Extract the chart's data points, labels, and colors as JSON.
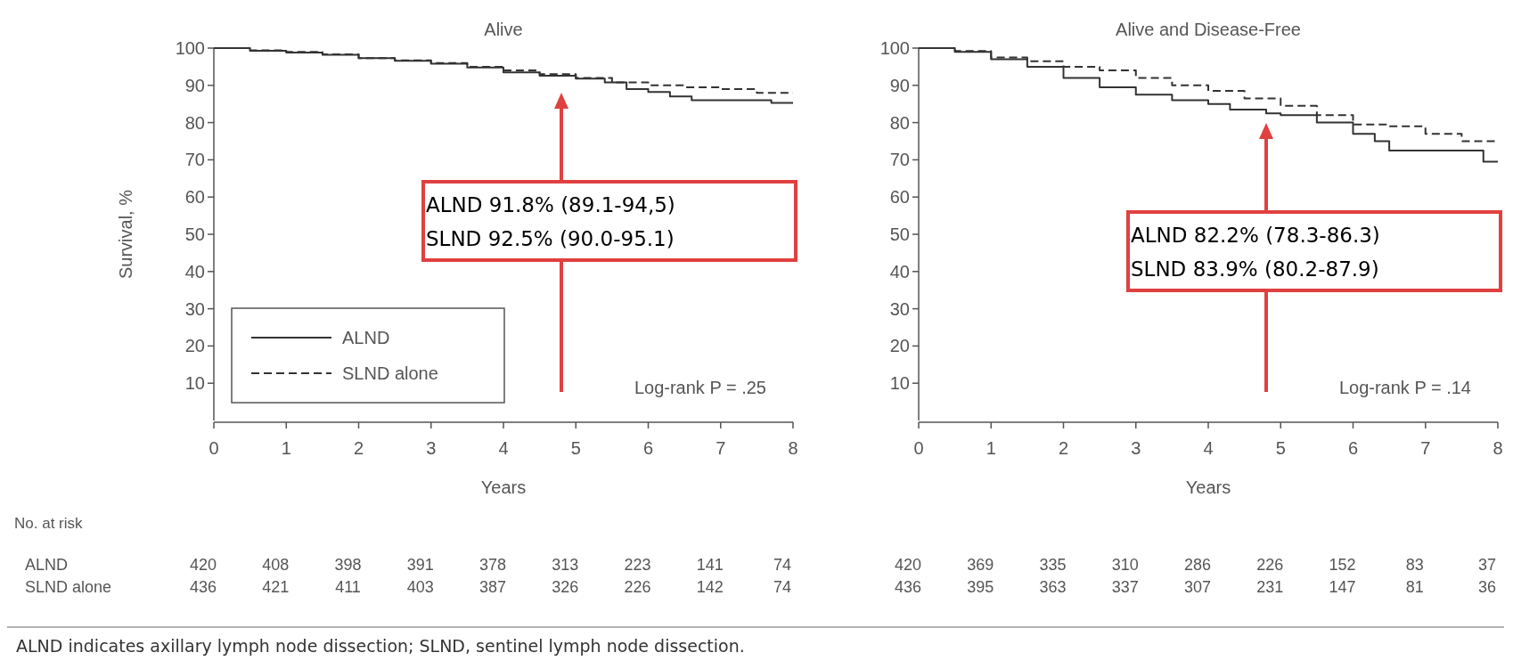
{
  "chart_data": [
    {
      "type": "step",
      "title": "Alive",
      "xlabel": "Years",
      "ylabel": "Survival, %",
      "xlim": [
        0,
        8
      ],
      "xticks": [
        0,
        1,
        2,
        3,
        4,
        5,
        6,
        7,
        8
      ],
      "ylim": [
        0,
        100
      ],
      "yticks": [
        10,
        20,
        30,
        40,
        50,
        60,
        70,
        80,
        90,
        100
      ],
      "legend": "bottom left",
      "grid": false,
      "marker": "none",
      "series": [
        {
          "name": "ALND",
          "color": "#333333",
          "line_style": "solid",
          "x": [
            0,
            0.5,
            1,
            1.5,
            2,
            2.5,
            3,
            3.5,
            4,
            4.5,
            5,
            5.4,
            5.7,
            6,
            6.3,
            6.6,
            7,
            7.5,
            7.7,
            8
          ],
          "values": [
            100,
            99.3,
            98.8,
            98.2,
            97.3,
            96.6,
            95.8,
            94.8,
            93.5,
            92.6,
            91.8,
            90.8,
            89,
            88.2,
            87,
            86,
            86,
            86,
            85.3,
            85.3
          ]
        },
        {
          "name": "SLND alone",
          "color": "#333333",
          "line_style": "dashed",
          "x": [
            0,
            0.5,
            1,
            1.5,
            2,
            2.5,
            3,
            3.5,
            4,
            4.5,
            5,
            5.5,
            6,
            6.5,
            7,
            7.5,
            8
          ],
          "values": [
            100,
            99.4,
            99,
            98.3,
            97.3,
            96.7,
            96,
            95,
            94,
            93,
            92,
            90.8,
            90,
            89.5,
            89,
            88,
            88
          ]
        }
      ],
      "annotations": [
        "ALND 91.8% (89.1-94,5)",
        "SLND 92.5% (90.0-95.1)",
        "Log-rank P = .25",
        "No. at risk",
        "ALND",
        "SLND alone",
        "420",
        "408",
        "398",
        "391",
        "378",
        "313",
        "223",
        "141",
        "74",
        "436",
        "421",
        "411",
        "403",
        "387",
        "326",
        "226",
        "142",
        "74"
      ]
    },
    {
      "type": "step",
      "title": "Alive and Disease-Free",
      "xlabel": "Years",
      "xlim": [
        0,
        8
      ],
      "xticks": [
        0,
        1,
        2,
        3,
        4,
        5,
        6,
        7,
        8
      ],
      "ylim": [
        0,
        100
      ],
      "yticks": [
        10,
        20,
        30,
        40,
        50,
        60,
        70,
        80,
        90,
        100
      ],
      "grid": false,
      "marker": "none",
      "series": [
        {
          "color": "#333333",
          "line_style": "solid",
          "x": [
            0,
            0.5,
            1,
            1.5,
            2,
            2.5,
            3,
            3.5,
            4,
            4.3,
            4.8,
            5,
            5.5,
            6,
            6.3,
            6.5,
            7,
            7.5,
            7.8,
            8
          ],
          "values": [
            100,
            99,
            97,
            95,
            92,
            89.5,
            87.5,
            86,
            85,
            83.5,
            82.5,
            82,
            80,
            77,
            75,
            72.5,
            72.5,
            72.5,
            69.5,
            69.5
          ]
        },
        {
          "color": "#333333",
          "line_style": "dashed",
          "x": [
            0,
            0.5,
            1,
            1.5,
            2,
            2.5,
            3,
            3.5,
            4,
            4.5,
            5,
            5.5,
            6,
            6.5,
            7,
            7.5,
            8
          ],
          "values": [
            100,
            99.2,
            97.5,
            96.5,
            95,
            94,
            92,
            90,
            88.5,
            86.5,
            84.5,
            82,
            79.5,
            79,
            77,
            75,
            75
          ]
        }
      ],
      "annotations": [
        "ALND 82.2% (78.3-86.3)",
        "SLND 83.9% (80.2-87.9)",
        "Log-rank P = .14",
        "420",
        "369",
        "335",
        "310",
        "286",
        "226",
        "152",
        "83",
        "37",
        "436",
        "395",
        "363",
        "337",
        "307",
        "231",
        "147",
        "81",
        "36",
        "ALND indicates axillary lymph node dissection; SLND, sentinel lymph node dissection."
      ]
    }
  ]
}
